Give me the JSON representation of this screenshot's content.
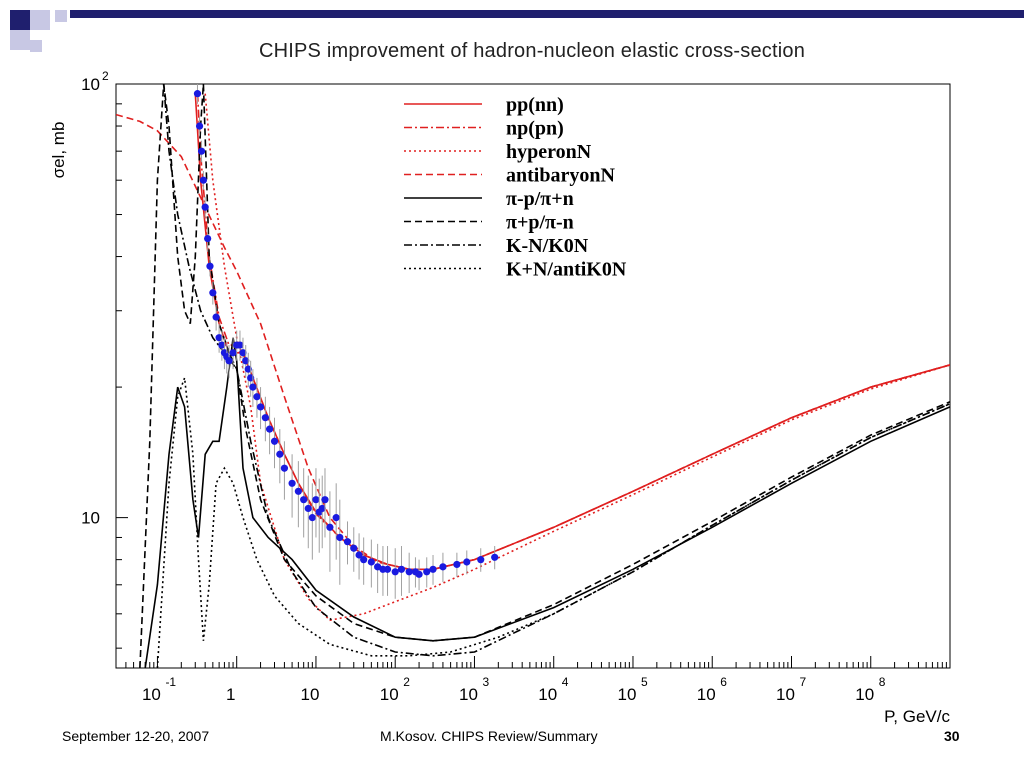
{
  "slide": {
    "footer_left": "September 12-20, 2007",
    "footer_center": "M.Kosov. CHIPS Review/Summary",
    "page_number": "30"
  },
  "colors": {
    "corner_dark": "#1f1f6e",
    "corner_light": "#c8c8e4",
    "red": "#e02020",
    "black": "#000000",
    "data_points": "#1a1ae0",
    "error_bars": "#a0a0a0"
  },
  "chart_data": {
    "type": "line",
    "title": "CHIPS improvement of hadron-nucleon elastic cross-section",
    "xlabel": "P, GeV/c",
    "ylabel": "σel, mb",
    "x_scale": "log",
    "y_scale": "log",
    "xlim": [
      0.03,
      1000000000
    ],
    "ylim": [
      4.5,
      100
    ],
    "grid": false,
    "legend_position": "top-right",
    "x_ticks": [
      {
        "base": "10",
        "exp": "-1",
        "value": 0.1
      },
      {
        "base": "1",
        "exp": "",
        "value": 1
      },
      {
        "base": "10",
        "exp": "",
        "value": 10
      },
      {
        "base": "10",
        "exp": "2",
        "value": 100
      },
      {
        "base": "10",
        "exp": "3",
        "value": 1000
      },
      {
        "base": "10",
        "exp": "4",
        "value": 10000
      },
      {
        "base": "10",
        "exp": "5",
        "value": 100000
      },
      {
        "base": "10",
        "exp": "6",
        "value": 1000000
      },
      {
        "base": "10",
        "exp": "7",
        "value": 10000000
      },
      {
        "base": "10",
        "exp": "8",
        "value": 100000000
      }
    ],
    "y_ticks": [
      {
        "base": "10",
        "exp": "",
        "value": 10
      },
      {
        "base": "10",
        "exp": "2",
        "value": 100
      }
    ],
    "series": [
      {
        "name": "pp(nn)",
        "color": "#e02020",
        "dash": "solid",
        "points": [
          [
            0.3,
            95
          ],
          [
            0.35,
            60
          ],
          [
            0.45,
            38
          ],
          [
            0.6,
            28
          ],
          [
            0.8,
            24
          ],
          [
            1.0,
            24
          ],
          [
            1.2,
            24
          ],
          [
            1.6,
            21
          ],
          [
            2.5,
            17
          ],
          [
            4,
            14
          ],
          [
            6,
            12
          ],
          [
            10,
            10.3
          ],
          [
            20,
            9
          ],
          [
            40,
            8.2
          ],
          [
            80,
            7.8
          ],
          [
            150,
            7.6
          ],
          [
            300,
            7.6
          ],
          [
            1000,
            8.0
          ],
          [
            10000,
            9.5
          ],
          [
            100000,
            11.5
          ],
          [
            1000000,
            14
          ],
          [
            10000000,
            17
          ],
          [
            100000000,
            20
          ],
          [
            1000000000,
            22.5
          ]
        ]
      },
      {
        "name": "np(pn)",
        "color": "#e02020",
        "dash": "dashdot",
        "points": [
          [
            0.32,
            95
          ],
          [
            0.36,
            65
          ],
          [
            0.45,
            40
          ],
          [
            0.6,
            29
          ],
          [
            0.8,
            25
          ],
          [
            1.0,
            25
          ],
          [
            1.2,
            24
          ],
          [
            1.6,
            21
          ],
          [
            2.5,
            17
          ],
          [
            4,
            14
          ],
          [
            6,
            12
          ],
          [
            10,
            10.2
          ],
          [
            20,
            9
          ],
          [
            40,
            8.2
          ],
          [
            80,
            7.8
          ],
          [
            150,
            7.6
          ],
          [
            300,
            7.6
          ],
          [
            1000,
            8.0
          ],
          [
            10000,
            9.5
          ],
          [
            100000,
            11.5
          ],
          [
            1000000,
            14
          ],
          [
            10000000,
            17
          ],
          [
            100000000,
            20
          ],
          [
            1000000000,
            22.5
          ]
        ]
      },
      {
        "name": "hyperonN",
        "color": "#e02020",
        "dash": "dotted",
        "points": [
          [
            0.4,
            95
          ],
          [
            0.5,
            60
          ],
          [
            0.7,
            38
          ],
          [
            1.0,
            26
          ],
          [
            1.5,
            18
          ],
          [
            2,
            12
          ],
          [
            4,
            8
          ],
          [
            8,
            6.5
          ],
          [
            15,
            5.8
          ],
          [
            40,
            6.0
          ],
          [
            100,
            6.4
          ],
          [
            300,
            6.9
          ],
          [
            1000,
            7.6
          ],
          [
            10000,
            9.3
          ],
          [
            100000,
            11.3
          ],
          [
            1000000,
            13.8
          ],
          [
            10000000,
            16.8
          ],
          [
            100000000,
            19.8
          ],
          [
            1000000000,
            22.5
          ]
        ]
      },
      {
        "name": "antibaryonN",
        "color": "#e02020",
        "dash": "dashed",
        "points": [
          [
            0.03,
            85
          ],
          [
            0.06,
            82
          ],
          [
            0.1,
            78
          ],
          [
            0.2,
            68
          ],
          [
            0.4,
            52
          ],
          [
            0.7,
            42
          ],
          [
            1.0,
            37
          ],
          [
            2,
            28
          ],
          [
            4,
            19
          ],
          [
            8,
            13
          ],
          [
            15,
            10
          ],
          [
            30,
            8.6
          ],
          [
            60,
            7.9
          ],
          [
            150,
            7.6
          ],
          [
            300,
            7.6
          ],
          [
            1000,
            8.0
          ],
          [
            10000,
            9.5
          ],
          [
            100000,
            11.5
          ],
          [
            1000000,
            14
          ],
          [
            10000000,
            17
          ],
          [
            100000000,
            20
          ],
          [
            1000000000,
            22.5
          ]
        ]
      },
      {
        "name": "π-p/π+n",
        "color": "#000000",
        "dash": "solid",
        "points": [
          [
            0.07,
            4.5
          ],
          [
            0.1,
            7
          ],
          [
            0.14,
            14
          ],
          [
            0.18,
            20
          ],
          [
            0.22,
            18
          ],
          [
            0.28,
            11
          ],
          [
            0.33,
            9
          ],
          [
            0.4,
            14
          ],
          [
            0.5,
            15
          ],
          [
            0.6,
            15
          ],
          [
            0.75,
            20
          ],
          [
            0.9,
            26
          ],
          [
            1.0,
            23
          ],
          [
            1.2,
            13
          ],
          [
            1.6,
            10
          ],
          [
            2.5,
            9
          ],
          [
            5,
            8
          ],
          [
            10,
            6.8
          ],
          [
            30,
            5.9
          ],
          [
            100,
            5.3
          ],
          [
            300,
            5.2
          ],
          [
            1000,
            5.3
          ],
          [
            10000,
            6.2
          ],
          [
            100000,
            7.6
          ],
          [
            1000000,
            9.5
          ],
          [
            10000000,
            12
          ],
          [
            100000000,
            15
          ],
          [
            1000000000,
            18
          ]
        ]
      },
      {
        "name": "π+p/π-n",
        "color": "#000000",
        "dash": "dashed",
        "points": [
          [
            0.06,
            4.5
          ],
          [
            0.08,
            15
          ],
          [
            0.1,
            60
          ],
          [
            0.12,
            100
          ],
          [
            0.14,
            80
          ],
          [
            0.18,
            40
          ],
          [
            0.22,
            30
          ],
          [
            0.26,
            28
          ],
          [
            0.3,
            40
          ],
          [
            0.35,
            80
          ],
          [
            0.38,
            100
          ],
          [
            0.45,
            40
          ],
          [
            0.6,
            28
          ],
          [
            0.8,
            24
          ],
          [
            1.0,
            22
          ],
          [
            1.3,
            16
          ],
          [
            2,
            11
          ],
          [
            4,
            8
          ],
          [
            10,
            6.6
          ],
          [
            30,
            5.7
          ],
          [
            100,
            5.3
          ],
          [
            300,
            5.2
          ],
          [
            1000,
            5.3
          ],
          [
            10000,
            6.3
          ],
          [
            100000,
            7.8
          ],
          [
            1000000,
            9.8
          ],
          [
            10000000,
            12.4
          ],
          [
            100000000,
            15.5
          ],
          [
            1000000000,
            18.5
          ]
        ]
      },
      {
        "name": "K-N/K0N",
        "color": "#000000",
        "dash": "dashdot",
        "points": [
          [
            0.12,
            100
          ],
          [
            0.14,
            70
          ],
          [
            0.18,
            50
          ],
          [
            0.25,
            38
          ],
          [
            0.35,
            30
          ],
          [
            0.5,
            26
          ],
          [
            0.7,
            24
          ],
          [
            1.0,
            22
          ],
          [
            1.5,
            15
          ],
          [
            2.5,
            10
          ],
          [
            5,
            7.5
          ],
          [
            10,
            6.2
          ],
          [
            30,
            5.3
          ],
          [
            100,
            4.9
          ],
          [
            300,
            4.8
          ],
          [
            1000,
            4.9
          ],
          [
            10000,
            6.0
          ],
          [
            100000,
            7.5
          ],
          [
            1000000,
            9.6
          ],
          [
            10000000,
            12.2
          ],
          [
            100000000,
            15.3
          ],
          [
            1000000000,
            18.3
          ]
        ]
      },
      {
        "name": "K+N/antiK0N",
        "color": "#000000",
        "dash": "dotted",
        "points": [
          [
            0.1,
            4.5
          ],
          [
            0.14,
            12
          ],
          [
            0.18,
            19
          ],
          [
            0.22,
            21
          ],
          [
            0.28,
            14
          ],
          [
            0.33,
            8
          ],
          [
            0.38,
            5.2
          ],
          [
            0.45,
            7
          ],
          [
            0.55,
            12
          ],
          [
            0.7,
            13
          ],
          [
            0.9,
            12
          ],
          [
            1.2,
            10
          ],
          [
            1.8,
            8
          ],
          [
            3,
            6.6
          ],
          [
            6,
            5.7
          ],
          [
            15,
            5.1
          ],
          [
            50,
            4.8
          ],
          [
            150,
            4.8
          ],
          [
            500,
            4.9
          ],
          [
            2000,
            5.3
          ],
          [
            10000,
            6.0
          ],
          [
            100000,
            7.5
          ],
          [
            1000000,
            9.6
          ],
          [
            10000000,
            12.2
          ],
          [
            100000000,
            15.3
          ],
          [
            1000000000,
            18.3
          ]
        ]
      }
    ],
    "experimental_data": {
      "name": "data",
      "color": "#1a1ae0",
      "points": [
        [
          0.32,
          95,
          5
        ],
        [
          0.34,
          80,
          4
        ],
        [
          0.36,
          70,
          4
        ],
        [
          0.38,
          60,
          3
        ],
        [
          0.4,
          52,
          3
        ],
        [
          0.43,
          44,
          3
        ],
        [
          0.46,
          38,
          2
        ],
        [
          0.5,
          33,
          2
        ],
        [
          0.55,
          29,
          2
        ],
        [
          0.6,
          26,
          2
        ],
        [
          0.65,
          25,
          2
        ],
        [
          0.7,
          24,
          2
        ],
        [
          0.75,
          23.5,
          2
        ],
        [
          0.8,
          23,
          2
        ],
        [
          0.9,
          24,
          2
        ],
        [
          1.0,
          25,
          2
        ],
        [
          1.1,
          25,
          2
        ],
        [
          1.2,
          24,
          2
        ],
        [
          1.3,
          23,
          2
        ],
        [
          1.4,
          22,
          2
        ],
        [
          1.5,
          21,
          2
        ],
        [
          1.6,
          20,
          2
        ],
        [
          1.8,
          19,
          2
        ],
        [
          2.0,
          18,
          2
        ],
        [
          2.3,
          17,
          2
        ],
        [
          2.6,
          16,
          2
        ],
        [
          3.0,
          15,
          2
        ],
        [
          3.5,
          14,
          2
        ],
        [
          4,
          13,
          2
        ],
        [
          5,
          12,
          2
        ],
        [
          6,
          11.5,
          2
        ],
        [
          7,
          11,
          2
        ],
        [
          8,
          10.5,
          2
        ],
        [
          9,
          10,
          2
        ],
        [
          10,
          11,
          2
        ],
        [
          11,
          10.3,
          2
        ],
        [
          12,
          10.5,
          2
        ],
        [
          13,
          11,
          2
        ],
        [
          15,
          9.5,
          2
        ],
        [
          18,
          10,
          2
        ],
        [
          20,
          9,
          2
        ],
        [
          25,
          8.8,
          1
        ],
        [
          30,
          8.5,
          1
        ],
        [
          35,
          8.2,
          1
        ],
        [
          40,
          8.0,
          1
        ],
        [
          50,
          7.9,
          1
        ],
        [
          60,
          7.7,
          1
        ],
        [
          70,
          7.6,
          1
        ],
        [
          80,
          7.6,
          1
        ],
        [
          100,
          7.5,
          1
        ],
        [
          120,
          7.6,
          1
        ],
        [
          150,
          7.5,
          0.8
        ],
        [
          180,
          7.5,
          0.6
        ],
        [
          200,
          7.4,
          0.6
        ],
        [
          250,
          7.5,
          0.6
        ],
        [
          300,
          7.6,
          0.6
        ],
        [
          400,
          7.7,
          0.6
        ],
        [
          600,
          7.8,
          0.5
        ],
        [
          800,
          7.9,
          0.5
        ],
        [
          1200,
          8.0,
          0.5
        ],
        [
          1800,
          8.1,
          0.5
        ]
      ]
    }
  }
}
